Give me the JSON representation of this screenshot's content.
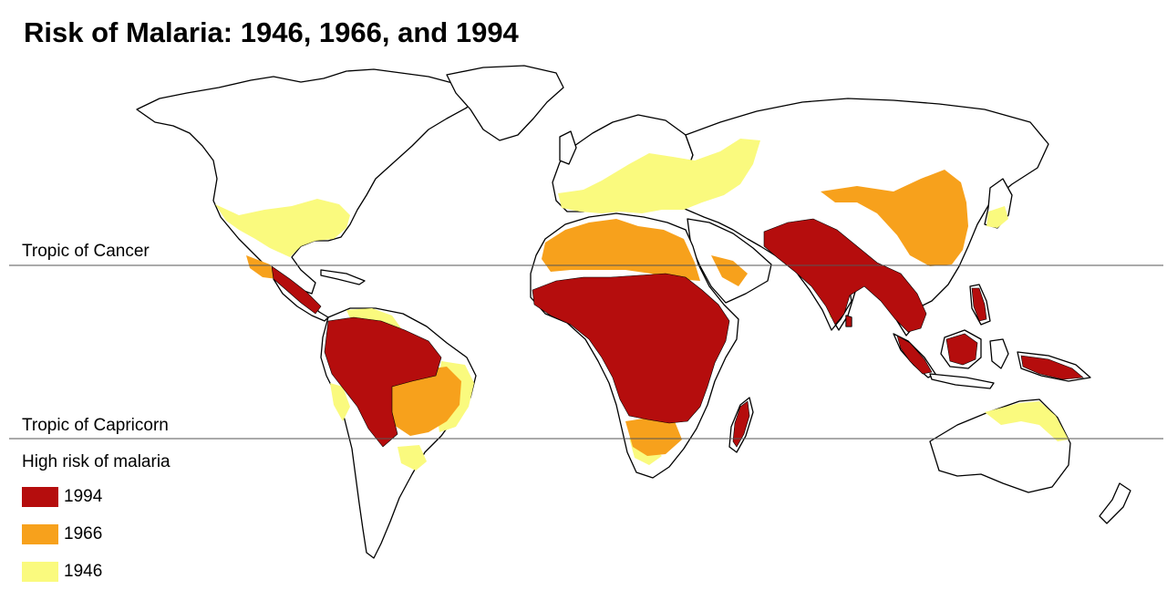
{
  "title": "Risk of Malaria: 1946, 1966, and 1994",
  "tropics": {
    "cancer_label": "Tropic of Cancer",
    "capricorn_label": "Tropic of Capricorn"
  },
  "legend": {
    "title": "High risk of malaria",
    "items": [
      {
        "label": "1994",
        "color": "#b50d0d"
      },
      {
        "label": "1966",
        "color": "#f7a11c"
      },
      {
        "label": "1946",
        "color": "#fafa7e"
      }
    ]
  },
  "colors": {
    "land": "#ffffff",
    "outline": "#000000",
    "tropic_line": "#555555"
  }
}
